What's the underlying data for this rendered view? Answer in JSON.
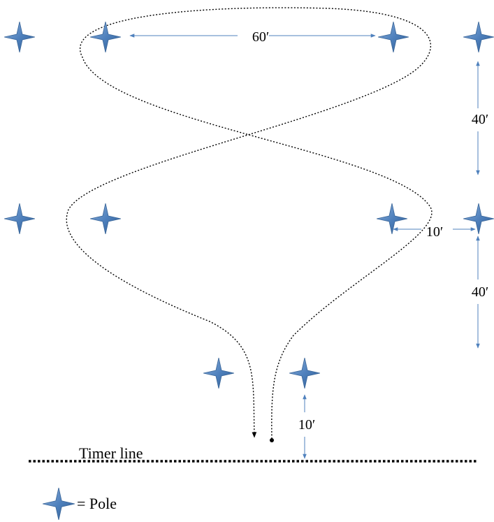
{
  "diagram": {
    "dimensions": {
      "top_width": "60′",
      "right_upper_gap": "40′",
      "right_lower_gap": "40′",
      "side_offset": "10′",
      "start_gap": "10′"
    },
    "timer_line_label": "Timer line",
    "legend": {
      "label": "= Pole",
      "icon": "four-point-star-icon"
    },
    "colors": {
      "pole_fill": "#4f81bd",
      "pole_outline": "#2e4f7a",
      "arrow": "#4f81bd",
      "path": "#000000",
      "timer_line": "#000000"
    }
  }
}
